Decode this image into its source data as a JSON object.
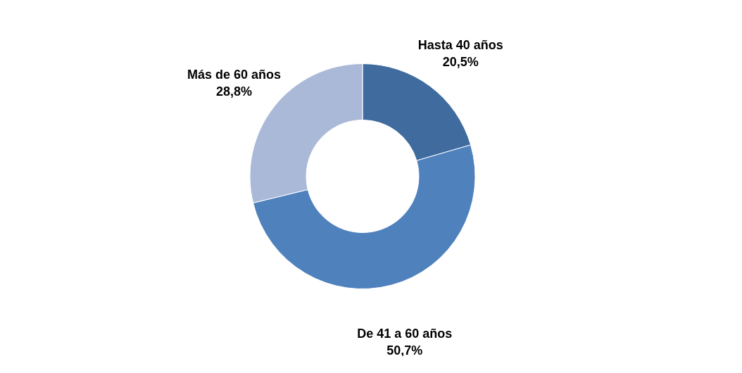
{
  "chart_data": {
    "type": "donut",
    "categories": [
      "Hasta 40 años",
      "De 41 a 60 años",
      "Más de 60 años"
    ],
    "values": [
      20.5,
      50.7,
      28.8
    ],
    "colors": [
      "#3f6b9f",
      "#4f81bd",
      "#a9b9d7"
    ],
    "value_labels": [
      "20,5%",
      "50,7%",
      "28,8%"
    ],
    "legend": false
  }
}
